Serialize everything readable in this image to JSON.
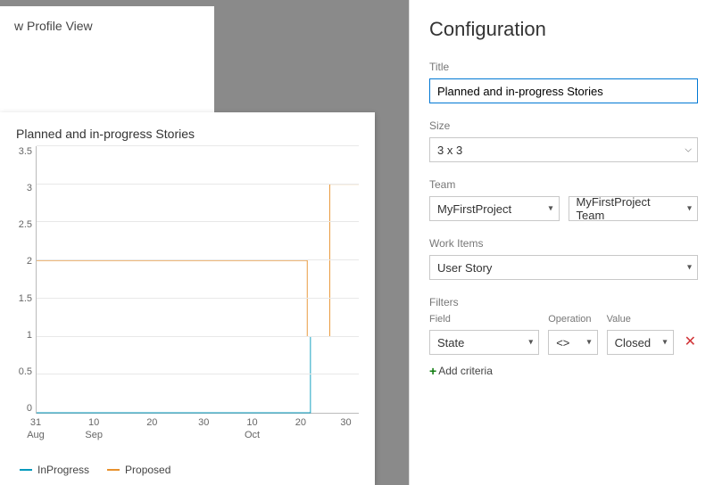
{
  "background_card": {
    "title": "w Profile View"
  },
  "chart": {
    "type": "line-step",
    "title": "Planned and in-progress Stories",
    "background_color": "#ffffff",
    "y_axis": {
      "min": 0,
      "max": 3.5,
      "step": 0.5,
      "labels": [
        "3.5",
        "3",
        "2.5",
        "2",
        "1.5",
        "1",
        "0.5",
        "0"
      ]
    },
    "x_axis": {
      "labels": [
        {
          "text": "31",
          "sub": "Aug",
          "pos": 0.0
        },
        {
          "text": "10",
          "sub": "Sep",
          "pos": 0.18
        },
        {
          "text": "20",
          "sub": "",
          "pos": 0.36
        },
        {
          "text": "30",
          "sub": "",
          "pos": 0.52
        },
        {
          "text": "10",
          "sub": "Oct",
          "pos": 0.67
        },
        {
          "text": "20",
          "sub": "",
          "pos": 0.82
        },
        {
          "text": "30",
          "sub": "",
          "pos": 0.96
        }
      ]
    },
    "series": [
      {
        "name": "InProgress",
        "color": "#0099bc",
        "points": [
          [
            0,
            0
          ],
          [
            0.85,
            0
          ],
          [
            0.85,
            1
          ],
          [
            1.0,
            1
          ]
        ]
      },
      {
        "name": "Proposed",
        "color": "#e8912d",
        "points": [
          [
            0,
            2
          ],
          [
            0.84,
            2
          ],
          [
            0.84,
            1
          ],
          [
            0.91,
            1
          ],
          [
            0.91,
            3
          ],
          [
            1.0,
            3
          ]
        ]
      }
    ],
    "grid_color": "#e8e8e8",
    "legend": [
      {
        "label": "InProgress",
        "color": "#0099bc"
      },
      {
        "label": "Proposed",
        "color": "#e8912d"
      }
    ]
  },
  "config": {
    "heading": "Configuration",
    "title_label": "Title",
    "title_value": "Planned and in-progress Stories",
    "size_label": "Size",
    "size_value": "3 x 3",
    "team_label": "Team",
    "project_value": "MyFirstProject",
    "team_value": "MyFirstProject Team",
    "workitems_label": "Work Items",
    "workitems_value": "User Story",
    "filters_label": "Filters",
    "filter_headers": {
      "field": "Field",
      "operation": "Operation",
      "value": "Value"
    },
    "filter_row": {
      "field": "State",
      "operation": "<>",
      "value": "Closed"
    },
    "add_criteria_label": "Add criteria"
  }
}
